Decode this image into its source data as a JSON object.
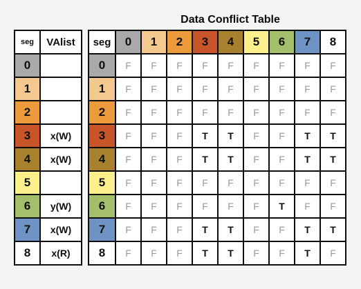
{
  "title": "Data Conflict Table",
  "colors": {
    "seg0": "#a9a9a9",
    "seg1": "#f3c98f",
    "seg2": "#eb9a3c",
    "seg3": "#c8552a",
    "seg4": "#a7812e",
    "seg5": "#fbf08c",
    "seg6": "#a3bf6b",
    "seg7": "#6f92c5",
    "seg8": "#ffffff"
  },
  "va_table": {
    "header_seg": "seg",
    "header_valist": "VAlist",
    "rows": [
      {
        "seg": "0",
        "valist": ""
      },
      {
        "seg": "1",
        "valist": ""
      },
      {
        "seg": "2",
        "valist": ""
      },
      {
        "seg": "3",
        "valist": "x(W)"
      },
      {
        "seg": "4",
        "valist": "x(W)"
      },
      {
        "seg": "5",
        "valist": ""
      },
      {
        "seg": "6",
        "valist": "y(W)"
      },
      {
        "seg": "7",
        "valist": "x(W)"
      },
      {
        "seg": "8",
        "valist": "x(R)"
      }
    ]
  },
  "conflict_table": {
    "corner": "seg",
    "col_headers": [
      "0",
      "1",
      "2",
      "3",
      "4",
      "5",
      "6",
      "7",
      "8"
    ],
    "row_headers": [
      "0",
      "1",
      "2",
      "3",
      "4",
      "5",
      "6",
      "7",
      "8"
    ],
    "cells": [
      [
        "F",
        "F",
        "F",
        "F",
        "F",
        "F",
        "F",
        "F",
        "F"
      ],
      [
        "F",
        "F",
        "F",
        "F",
        "F",
        "F",
        "F",
        "F",
        "F"
      ],
      [
        "F",
        "F",
        "F",
        "F",
        "F",
        "F",
        "F",
        "F",
        "F"
      ],
      [
        "F",
        "F",
        "F",
        "T",
        "T",
        "F",
        "F",
        "T",
        "T"
      ],
      [
        "F",
        "F",
        "F",
        "T",
        "T",
        "F",
        "F",
        "T",
        "T"
      ],
      [
        "F",
        "F",
        "F",
        "F",
        "F",
        "F",
        "F",
        "F",
        "F"
      ],
      [
        "F",
        "F",
        "F",
        "F",
        "F",
        "F",
        "T",
        "F",
        "F"
      ],
      [
        "F",
        "F",
        "F",
        "T",
        "T",
        "F",
        "F",
        "T",
        "T"
      ],
      [
        "F",
        "F",
        "F",
        "T",
        "T",
        "F",
        "F",
        "T",
        "F"
      ]
    ]
  }
}
